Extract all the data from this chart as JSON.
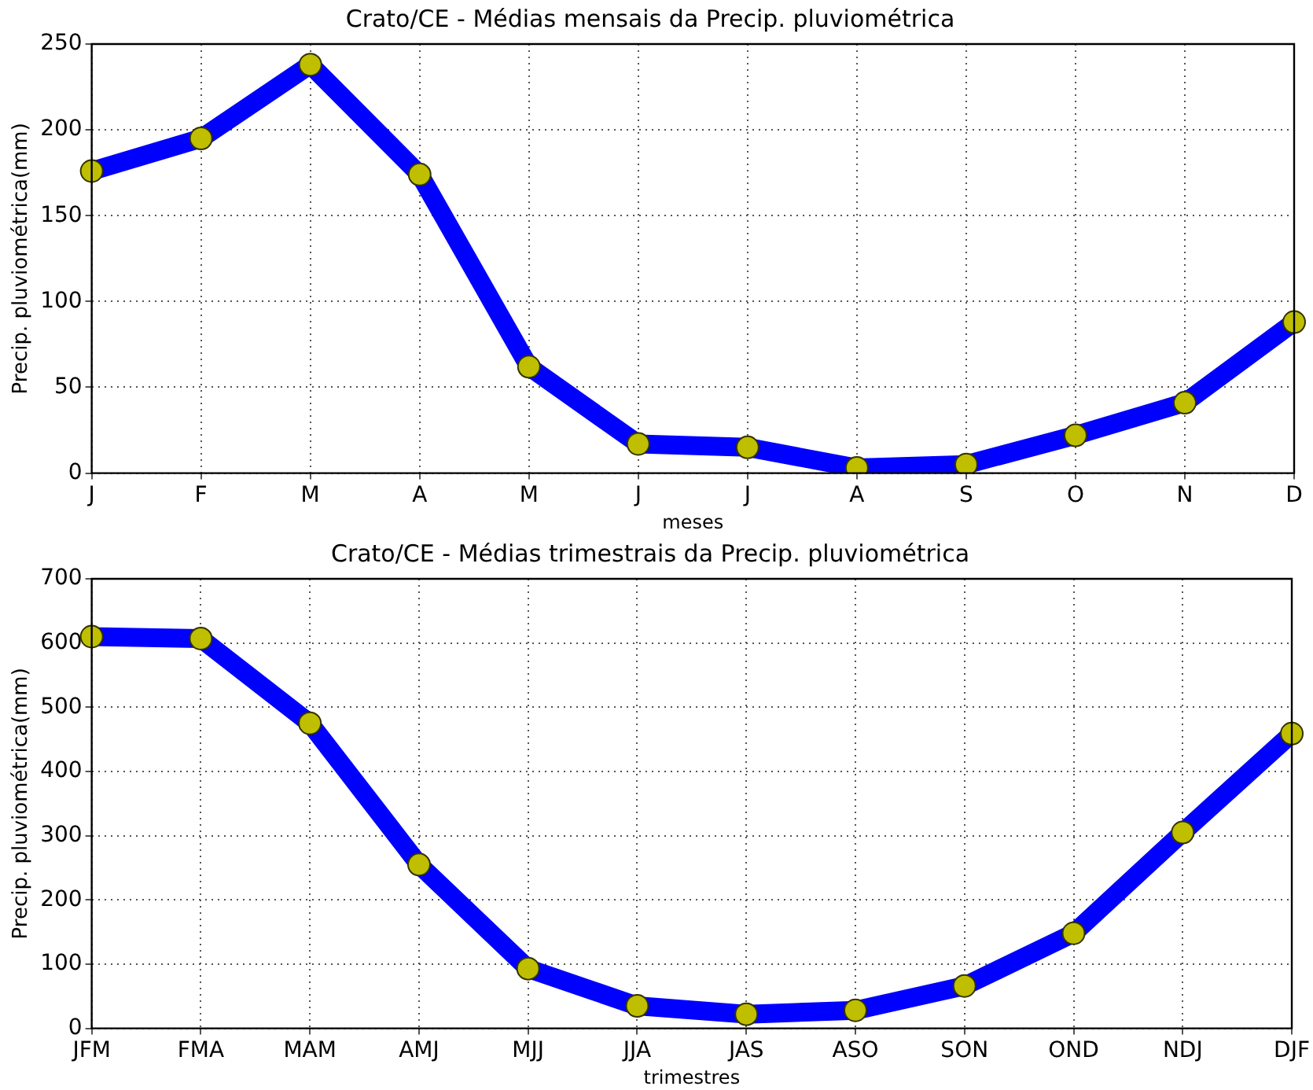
{
  "chart_data": [
    {
      "type": "line",
      "title": "Crato/CE - Médias mensais da Precip. pluviométrica",
      "xlabel": "meses",
      "ylabel": "Precip. pluviométrica(mm)",
      "categories": [
        "J",
        "F",
        "M",
        "A",
        "M",
        "J",
        "J",
        "A",
        "S",
        "O",
        "N",
        "D"
      ],
      "series": [
        {
          "color": "#0000ff",
          "values": [
            176,
            195,
            238,
            174,
            62,
            17,
            15,
            3,
            5,
            22,
            41,
            88
          ]
        }
      ],
      "ylim": [
        0,
        250
      ],
      "yticks": [
        0,
        50,
        100,
        150,
        200,
        250
      ],
      "grid": true,
      "marker": "circle",
      "line_style": "solid"
    },
    {
      "type": "line",
      "title": "Crato/CE - Médias trimestrais da Precip. pluviométrica",
      "xlabel": "trimestres",
      "ylabel": "Precip. pluviométrica(mm)",
      "categories": [
        "JFM",
        "FMA",
        "MAM",
        "AMJ",
        "MJJ",
        "JJA",
        "JAS",
        "ASO",
        "SON",
        "OND",
        "NDJ",
        "DJF"
      ],
      "series": [
        {
          "color": "#0000ff",
          "values": [
            610,
            607,
            475,
            255,
            93,
            35,
            22,
            28,
            66,
            148,
            305,
            459
          ]
        }
      ],
      "ylim": [
        0,
        700
      ],
      "yticks": [
        0,
        100,
        200,
        300,
        400,
        500,
        600,
        700
      ],
      "grid": true,
      "marker": "circle",
      "line_style": "solid"
    }
  ]
}
